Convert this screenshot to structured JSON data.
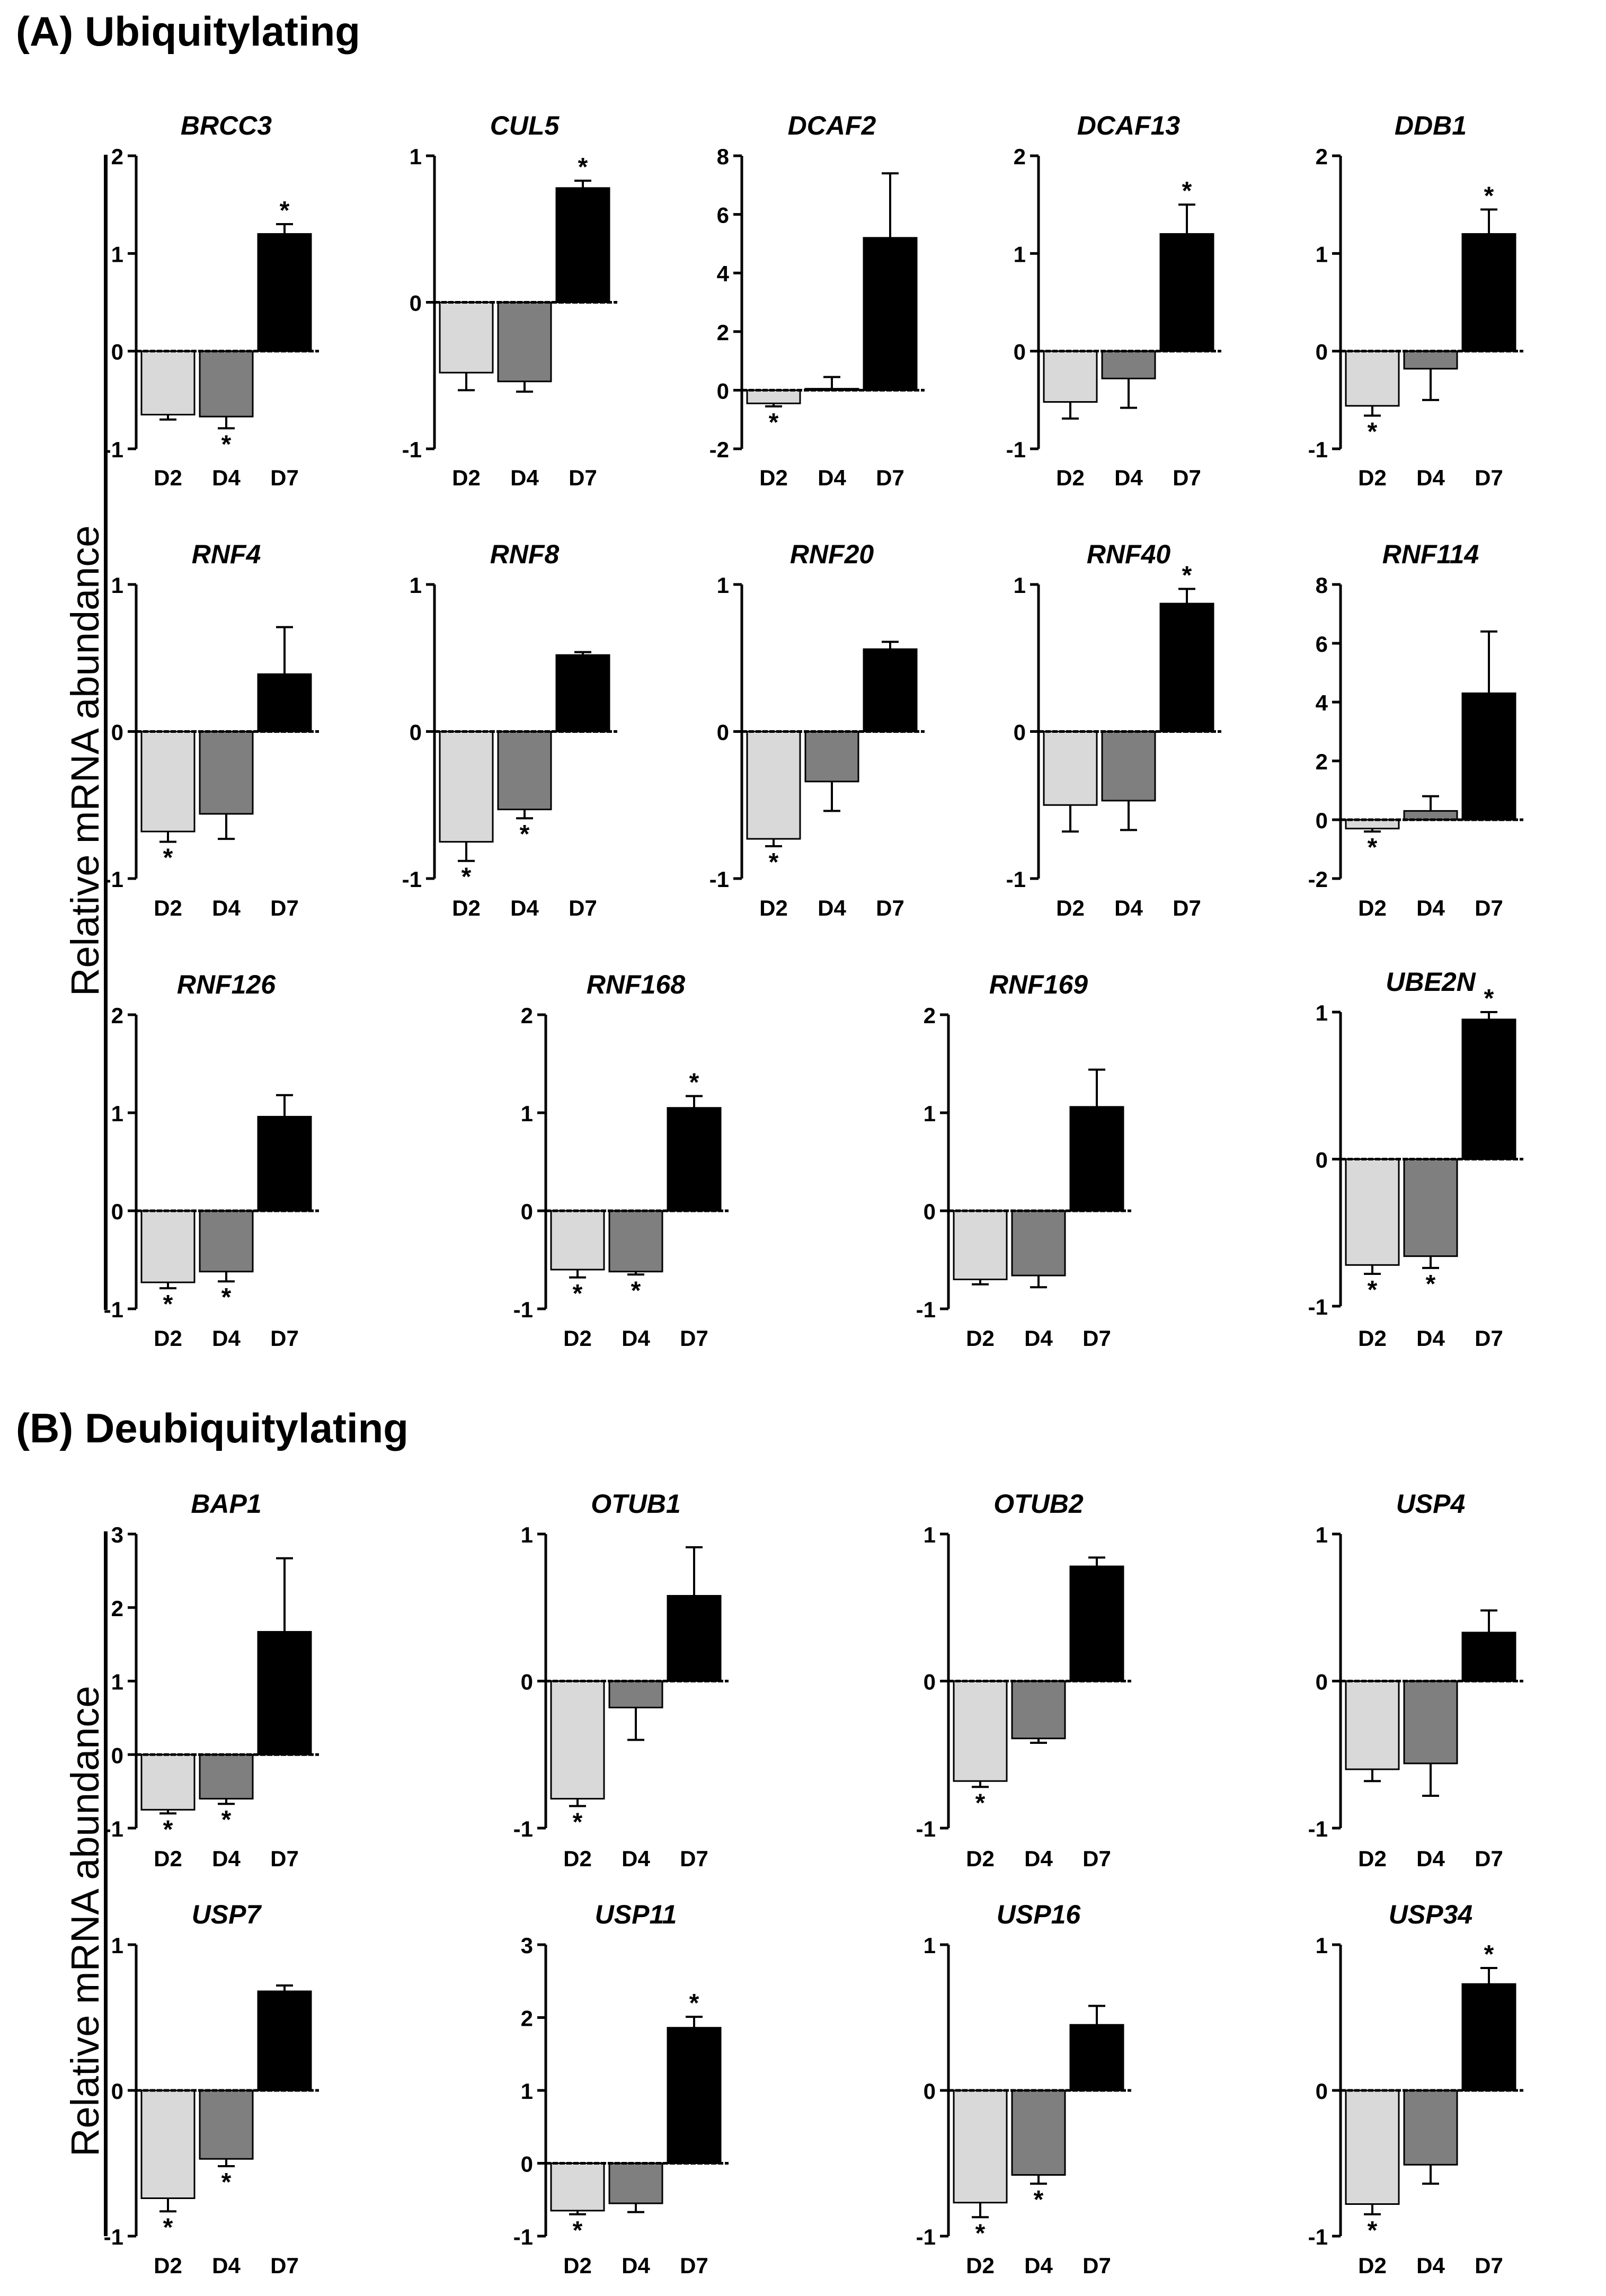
{
  "sections": {
    "a_title": "(A) Ubiquitylating",
    "b_title": "(B) Deubiquitylating",
    "ylabel": "Relative mRNA abundance"
  },
  "colors": {
    "D2": "#d9d9d9",
    "D4": "#7f7f7f",
    "D7": "#000000",
    "axis": "#000000"
  },
  "chart_data": [
    {
      "type": "bar",
      "title": "BRCC3",
      "categories": [
        "D2",
        "D4",
        "D7"
      ],
      "values": [
        -0.65,
        -0.67,
        1.2
      ],
      "errors": [
        0.05,
        0.12,
        0.1
      ],
      "significant": [
        false,
        true,
        true
      ],
      "ylim": [
        -1,
        2
      ],
      "yticks": [
        -1,
        0,
        1,
        2
      ],
      "ylabel": "Relative mRNA abundance"
    },
    {
      "type": "bar",
      "title": "CUL5",
      "categories": [
        "D2",
        "D4",
        "D7"
      ],
      "values": [
        -0.48,
        -0.54,
        0.78
      ],
      "errors": [
        0.12,
        0.07,
        0.05
      ],
      "significant": [
        false,
        false,
        true
      ],
      "ylim": [
        -1,
        1
      ],
      "yticks": [
        -1,
        0,
        1
      ],
      "ylabel": "Relative mRNA abundance"
    },
    {
      "type": "bar",
      "title": "DCAF2",
      "categories": [
        "D2",
        "D4",
        "D7"
      ],
      "values": [
        -0.45,
        0.05,
        5.2
      ],
      "errors": [
        0.1,
        0.4,
        2.2
      ],
      "significant": [
        true,
        false,
        false
      ],
      "ylim": [
        -2,
        8
      ],
      "yticks": [
        -2,
        0,
        2,
        4,
        6,
        8
      ],
      "ylabel": "Relative mRNA abundance"
    },
    {
      "type": "bar",
      "title": "DCAF13",
      "categories": [
        "D2",
        "D4",
        "D7"
      ],
      "values": [
        -0.52,
        -0.28,
        1.2
      ],
      "errors": [
        0.17,
        0.3,
        0.3
      ],
      "significant": [
        false,
        false,
        true
      ],
      "ylim": [
        -1,
        2
      ],
      "yticks": [
        -1,
        0,
        1,
        2
      ],
      "ylabel": "Relative mRNA abundance"
    },
    {
      "type": "bar",
      "title": "DDB1",
      "categories": [
        "D2",
        "D4",
        "D7"
      ],
      "values": [
        -0.56,
        -0.18,
        1.2
      ],
      "errors": [
        0.1,
        0.32,
        0.25
      ],
      "significant": [
        true,
        false,
        true
      ],
      "ylim": [
        -1,
        2
      ],
      "yticks": [
        -1,
        0,
        1,
        2
      ],
      "ylabel": "Relative mRNA abundance"
    },
    {
      "type": "bar",
      "title": "RNF4",
      "categories": [
        "D2",
        "D4",
        "D7"
      ],
      "values": [
        -0.68,
        -0.56,
        0.39
      ],
      "errors": [
        0.07,
        0.17,
        0.32
      ],
      "significant": [
        true,
        false,
        false
      ],
      "ylim": [
        -1,
        1
      ],
      "yticks": [
        -1,
        0,
        1
      ],
      "ylabel": "Relative mRNA abundance"
    },
    {
      "type": "bar",
      "title": "RNF8",
      "categories": [
        "D2",
        "D4",
        "D7"
      ],
      "values": [
        -0.75,
        -0.53,
        0.52
      ],
      "errors": [
        0.13,
        0.06,
        0.02
      ],
      "significant": [
        true,
        true,
        false
      ],
      "ylim": [
        -1,
        1
      ],
      "yticks": [
        -1,
        0,
        1
      ],
      "ylabel": "Relative mRNA abundance"
    },
    {
      "type": "bar",
      "title": "RNF20",
      "categories": [
        "D2",
        "D4",
        "D7"
      ],
      "values": [
        -0.73,
        -0.34,
        0.56
      ],
      "errors": [
        0.05,
        0.2,
        0.05
      ],
      "significant": [
        true,
        false,
        false
      ],
      "ylim": [
        -1,
        1
      ],
      "yticks": [
        -1,
        0,
        1
      ],
      "ylabel": "Relative mRNA abundance"
    },
    {
      "type": "bar",
      "title": "RNF40",
      "categories": [
        "D2",
        "D4",
        "D7"
      ],
      "values": [
        -0.5,
        -0.47,
        0.87
      ],
      "errors": [
        0.18,
        0.2,
        0.1
      ],
      "significant": [
        false,
        false,
        true
      ],
      "ylim": [
        -1,
        1
      ],
      "yticks": [
        -1,
        0,
        1
      ],
      "ylabel": "Relative mRNA abundance"
    },
    {
      "type": "bar",
      "title": "RNF114",
      "categories": [
        "D2",
        "D4",
        "D7"
      ],
      "values": [
        -0.3,
        0.3,
        4.3
      ],
      "errors": [
        0.1,
        0.5,
        2.1
      ],
      "significant": [
        true,
        false,
        false
      ],
      "ylim": [
        -2,
        8
      ],
      "yticks": [
        -2,
        0,
        2,
        4,
        6,
        8
      ],
      "ylabel": "Relative mRNA abundance"
    },
    {
      "type": "bar",
      "title": "RNF126",
      "categories": [
        "D2",
        "D4",
        "D7"
      ],
      "values": [
        -0.73,
        -0.62,
        0.96
      ],
      "errors": [
        0.06,
        0.1,
        0.22
      ],
      "significant": [
        true,
        true,
        false
      ],
      "ylim": [
        -1,
        2
      ],
      "yticks": [
        -1,
        0,
        1,
        2
      ],
      "ylabel": "Relative mRNA abundance"
    },
    {
      "type": "bar",
      "title": "RNF168",
      "categories": [
        "D2",
        "D4",
        "D7"
      ],
      "values": [
        -0.6,
        -0.62,
        1.05
      ],
      "errors": [
        0.08,
        0.03,
        0.12
      ],
      "significant": [
        true,
        true,
        true
      ],
      "ylim": [
        -1,
        2
      ],
      "yticks": [
        -1,
        0,
        1,
        2
      ],
      "ylabel": "Relative mRNA abundance"
    },
    {
      "type": "bar",
      "title": "RNF169",
      "categories": [
        "D2",
        "D4",
        "D7"
      ],
      "values": [
        -0.7,
        -0.66,
        1.06
      ],
      "errors": [
        0.05,
        0.12,
        0.38
      ],
      "significant": [
        false,
        false,
        false
      ],
      "ylim": [
        -1,
        2
      ],
      "yticks": [
        -1,
        0,
        1,
        2
      ],
      "ylabel": "Relative mRNA abundance"
    },
    {
      "type": "bar",
      "title": "UBE2N",
      "categories": [
        "D2",
        "D4",
        "D7"
      ],
      "values": [
        -0.72,
        -0.66,
        0.95
      ],
      "errors": [
        0.06,
        0.08,
        0.05
      ],
      "significant": [
        true,
        true,
        true
      ],
      "ylim": [
        -1,
        1
      ],
      "yticks": [
        -1,
        0,
        1
      ],
      "ylabel": "Relative mRNA abundance"
    },
    {
      "type": "bar",
      "title": "BAP1",
      "categories": [
        "D2",
        "D4",
        "D7"
      ],
      "values": [
        -0.75,
        -0.6,
        1.67
      ],
      "errors": [
        0.05,
        0.07,
        1.0
      ],
      "significant": [
        true,
        true,
        false
      ],
      "ylim": [
        -1,
        3
      ],
      "yticks": [
        -1,
        0,
        1,
        2,
        3
      ],
      "ylabel": "Relative mRNA abundance"
    },
    {
      "type": "bar",
      "title": "OTUB1",
      "categories": [
        "D2",
        "D4",
        "D7"
      ],
      "values": [
        -0.8,
        -0.18,
        0.58
      ],
      "errors": [
        0.05,
        0.22,
        0.33
      ],
      "significant": [
        true,
        false,
        false
      ],
      "ylim": [
        -1,
        1
      ],
      "yticks": [
        -1,
        0,
        1
      ],
      "ylabel": "Relative mRNA abundance"
    },
    {
      "type": "bar",
      "title": "OTUB2",
      "categories": [
        "D2",
        "D4",
        "D7"
      ],
      "values": [
        -0.68,
        -0.39,
        0.78
      ],
      "errors": [
        0.04,
        0.03,
        0.06
      ],
      "significant": [
        true,
        false,
        false
      ],
      "ylim": [
        -1,
        1
      ],
      "yticks": [
        -1,
        0,
        1
      ],
      "ylabel": "Relative mRNA abundance"
    },
    {
      "type": "bar",
      "title": "USP4",
      "categories": [
        "D2",
        "D4",
        "D7"
      ],
      "values": [
        -0.6,
        -0.56,
        0.33
      ],
      "errors": [
        0.08,
        0.22,
        0.15
      ],
      "significant": [
        false,
        false,
        false
      ],
      "ylim": [
        -1,
        1
      ],
      "yticks": [
        -1,
        0,
        1
      ],
      "ylabel": "Relative mRNA abundance"
    },
    {
      "type": "bar",
      "title": "USP7",
      "categories": [
        "D2",
        "D4",
        "D7"
      ],
      "values": [
        -0.74,
        -0.47,
        0.68
      ],
      "errors": [
        0.09,
        0.05,
        0.04
      ],
      "significant": [
        true,
        true,
        false
      ],
      "ylim": [
        -1,
        1
      ],
      "yticks": [
        -1,
        0,
        1
      ],
      "ylabel": "Relative mRNA abundance"
    },
    {
      "type": "bar",
      "title": "USP11",
      "categories": [
        "D2",
        "D4",
        "D7"
      ],
      "values": [
        -0.65,
        -0.55,
        1.86
      ],
      "errors": [
        0.05,
        0.12,
        0.15
      ],
      "significant": [
        true,
        false,
        true
      ],
      "ylim": [
        -1,
        3
      ],
      "yticks": [
        -1,
        0,
        1,
        2,
        3
      ],
      "ylabel": "Relative mRNA abundance"
    },
    {
      "type": "bar",
      "title": "USP16",
      "categories": [
        "D2",
        "D4",
        "D7"
      ],
      "values": [
        -0.77,
        -0.58,
        0.45
      ],
      "errors": [
        0.1,
        0.06,
        0.13
      ],
      "significant": [
        true,
        true,
        false
      ],
      "ylim": [
        -1,
        1
      ],
      "yticks": [
        -1,
        0,
        1
      ],
      "ylabel": "Relative mRNA abundance"
    },
    {
      "type": "bar",
      "title": "USP34",
      "categories": [
        "D2",
        "D4",
        "D7"
      ],
      "values": [
        -0.78,
        -0.51,
        0.73
      ],
      "errors": [
        0.07,
        0.13,
        0.11
      ],
      "significant": [
        true,
        false,
        true
      ],
      "ylim": [
        -1,
        1
      ],
      "yticks": [
        -1,
        0,
        1
      ],
      "ylabel": "Relative mRNA abundance"
    }
  ]
}
